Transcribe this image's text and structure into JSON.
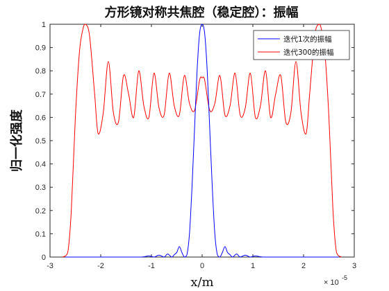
{
  "chart_data": {
    "type": "line",
    "title": "方形镜对称共焦腔（稳定腔）：振幅",
    "xlabel": "x/m",
    "ylabel": "归一化强度",
    "x_exponent": "× 10",
    "x_exponent_power": "-5",
    "xlim": [
      -3e-05,
      3e-05
    ],
    "ylim": [
      0,
      1
    ],
    "x_ticks": [
      -3e-05,
      -2e-05,
      -1e-05,
      0,
      1e-05,
      2e-05,
      3e-05
    ],
    "x_tick_labels": [
      "-3",
      "-2",
      "-1",
      "0",
      "1",
      "2",
      "3"
    ],
    "y_ticks": [
      0,
      0.1,
      0.2,
      0.3,
      0.4,
      0.5,
      0.6,
      0.7,
      0.8,
      0.9,
      1
    ],
    "y_tick_labels": [
      "0",
      "0.1",
      "0.2",
      "0.3",
      "0.4",
      "0.5",
      "0.6",
      "0.7",
      "0.8",
      "0.9",
      "1"
    ],
    "grid": false,
    "legend_position": "top-right",
    "series": [
      {
        "name": "迭代1次的振幅",
        "color": "#0000ff",
        "x": [
          -2.7e-05,
          -1.6e-05,
          -1.2e-05,
          -1.05e-05,
          -9.5e-06,
          -8.5e-06,
          -7.5e-06,
          -6.8e-06,
          -6e-06,
          -5.5e-06,
          -5e-06,
          -4.5e-06,
          -4e-06,
          -3.5e-06,
          -3e-06,
          -2.5e-06,
          -2e-06,
          -1.5e-06,
          -1e-06,
          -5e-07,
          0,
          5e-07,
          1e-06,
          1.5e-06,
          2e-06,
          2.5e-06,
          3e-06,
          3.5e-06,
          4e-06,
          4.5e-06,
          5e-06,
          5.5e-06,
          6e-06,
          6.8e-06,
          7.5e-06,
          8.5e-06,
          9.5e-06,
          1.05e-05,
          1.2e-05,
          1.6e-05,
          2.7e-05
        ],
        "y": [
          0,
          0,
          0,
          0.005,
          0,
          0.008,
          0,
          0.013,
          0,
          0.01,
          0.02,
          0.045,
          0.02,
          0,
          0.01,
          0.1,
          0.3,
          0.55,
          0.8,
          0.96,
          1,
          0.96,
          0.8,
          0.55,
          0.3,
          0.1,
          0.01,
          0,
          0.02,
          0.045,
          0.02,
          0.01,
          0,
          0.013,
          0,
          0.008,
          0,
          0.005,
          0,
          0,
          0
        ]
      },
      {
        "name": "迭代300的振幅",
        "color": "#ff0000",
        "x": [
          -2.75e-05,
          -2.65e-05,
          -2.58e-05,
          -2.5e-05,
          -2.42e-05,
          -2.35e-05,
          -2.3e-05,
          -2.22e-05,
          -2.12e-05,
          -2.05e-05,
          -1.95e-05,
          -1.85e-05,
          -1.75e-05,
          -1.65e-05,
          -1.55e-05,
          -1.45e-05,
          -1.35e-05,
          -1.25e-05,
          -1.15e-05,
          -1.05e-05,
          -9.5e-06,
          -8.5e-06,
          -7.5e-06,
          -6.5e-06,
          -5.5e-06,
          -4.5e-06,
          -3.5e-06,
          -2.5e-06,
          -1.5e-06,
          -5e-07,
          0,
          5e-07,
          1.5e-06,
          2.5e-06,
          3.5e-06,
          4.5e-06,
          5.5e-06,
          6.5e-06,
          7.5e-06,
          8.5e-06,
          9.5e-06,
          1.05e-05,
          1.15e-05,
          1.25e-05,
          1.35e-05,
          1.45e-05,
          1.55e-05,
          1.65e-05,
          1.75e-05,
          1.85e-05,
          1.95e-05,
          2.05e-05,
          2.12e-05,
          2.22e-05,
          2.3e-05,
          2.35e-05,
          2.42e-05,
          2.5e-05,
          2.58e-05,
          2.65e-05,
          2.75e-05
        ],
        "y": [
          0,
          0.02,
          0.2,
          0.6,
          0.88,
          0.98,
          1,
          0.95,
          0.7,
          0.53,
          0.62,
          0.84,
          0.62,
          0.58,
          0.78,
          0.7,
          0.6,
          0.8,
          0.65,
          0.6,
          0.79,
          0.64,
          0.61,
          0.79,
          0.65,
          0.61,
          0.78,
          0.66,
          0.63,
          0.76,
          0.77,
          0.76,
          0.63,
          0.66,
          0.78,
          0.61,
          0.65,
          0.79,
          0.61,
          0.64,
          0.79,
          0.6,
          0.65,
          0.8,
          0.6,
          0.7,
          0.78,
          0.58,
          0.62,
          0.84,
          0.62,
          0.53,
          0.7,
          0.95,
          1,
          0.98,
          0.88,
          0.6,
          0.2,
          0.02,
          0
        ]
      }
    ]
  }
}
